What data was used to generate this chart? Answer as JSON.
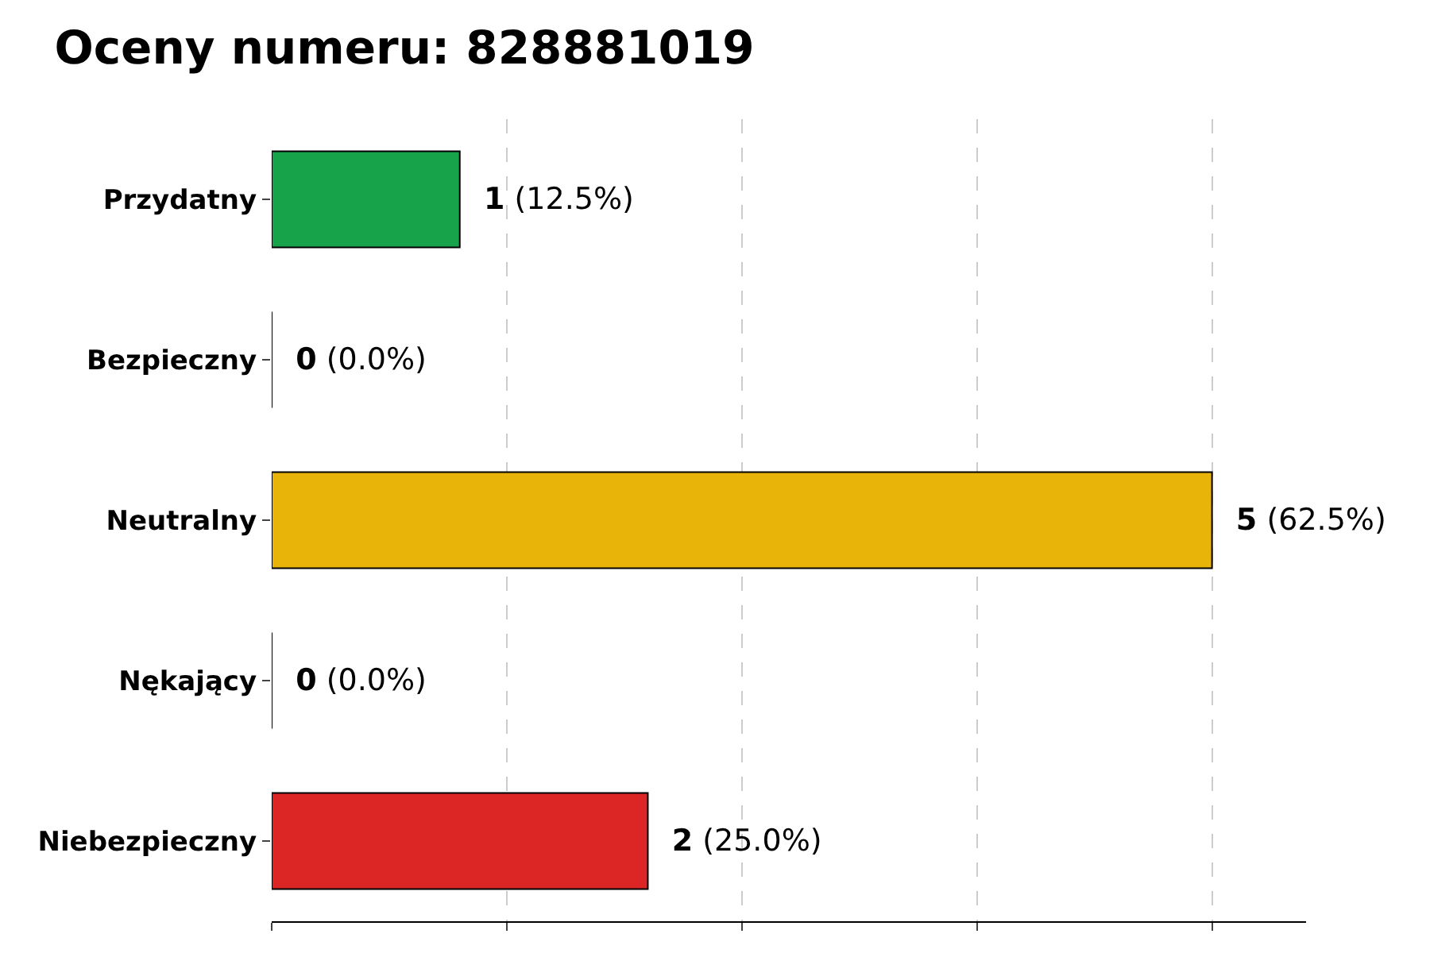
{
  "chart_data": {
    "type": "bar",
    "orientation": "horizontal",
    "title": "Oceny numeru: 828881019",
    "categories": [
      "Przydatny",
      "Bezpieczny",
      "Neutralny",
      "Nękający",
      "Niebezpieczny"
    ],
    "values": [
      1,
      0,
      5,
      0,
      2
    ],
    "colors": [
      "#17a34a",
      "#000000",
      "#e8b40a",
      "#000000",
      "#dc2626"
    ],
    "value_labels": [
      "1 (12.5%)",
      "0 (0.0%)",
      "5 (62.5%)",
      "0 (0.0%)",
      "2 (25.0%)"
    ],
    "xlim": [
      0,
      5.5
    ],
    "xticks": [
      {
        "value": 0,
        "label": null
      },
      {
        "value": 1.25,
        "label": null
      },
      {
        "value": 2.5,
        "label": null
      },
      {
        "value": 3.75,
        "label": null
      },
      {
        "value": 5,
        "label": null
      }
    ],
    "grid": "x",
    "tick_labels": "y",
    "legend": false
  }
}
